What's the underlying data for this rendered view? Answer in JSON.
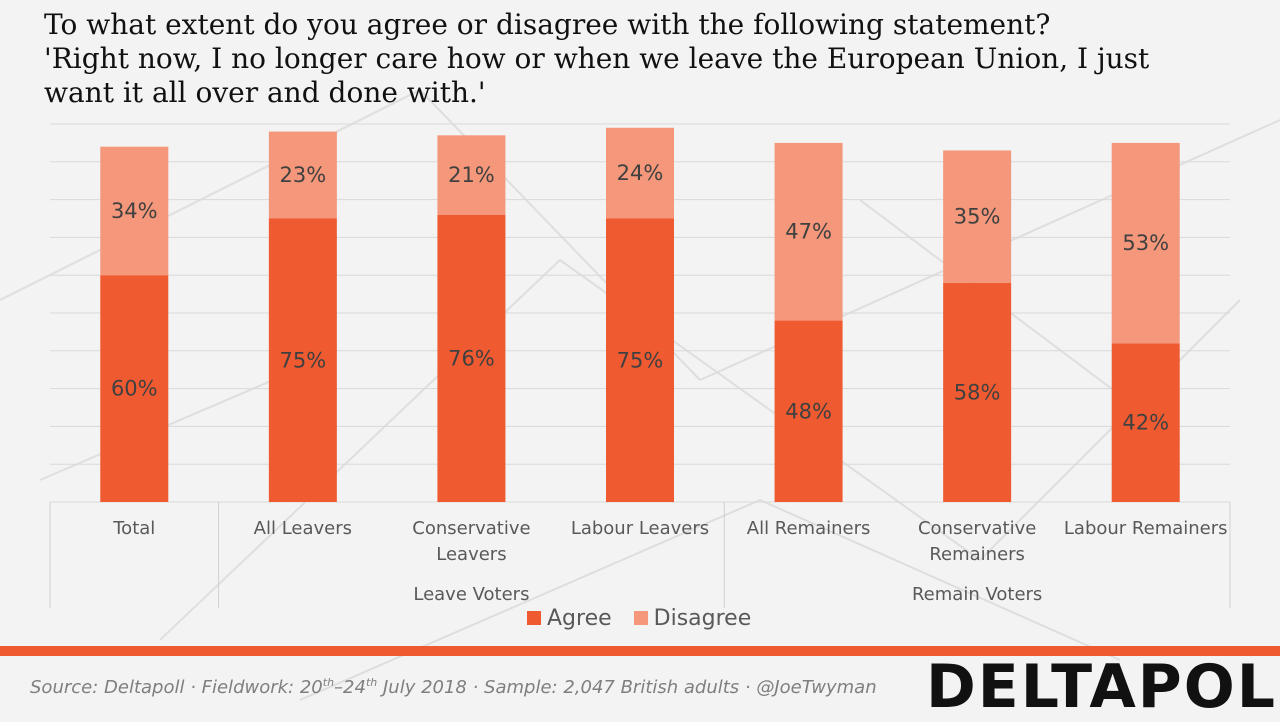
{
  "title": {
    "line1": "To what extent do you agree or disagree with the following statement?",
    "line2": "'Right now, I no longer care how or when we leave the European Union, I just",
    "line3": "want it all over and done with.'"
  },
  "chart_data": {
    "type": "bar",
    "stacked": true,
    "title": "To what extent do you agree or disagree with the following statement? 'Right now, I no longer care how or when we leave the European Union, I just want it all over and done with.'",
    "categories": [
      {
        "label": "Total",
        "lines": [
          "Total"
        ]
      },
      {
        "label": "All Leavers",
        "lines": [
          "All Leavers"
        ]
      },
      {
        "label": "Conservative Leavers",
        "lines": [
          "Conservative",
          "Leavers"
        ]
      },
      {
        "label": "Labour Leavers",
        "lines": [
          "Labour Leavers"
        ]
      },
      {
        "label": "All Remainers",
        "lines": [
          "All Remainers"
        ]
      },
      {
        "label": "Conservative Remainers",
        "lines": [
          "Conservative",
          "Remainers"
        ]
      },
      {
        "label": "Labour Remainers",
        "lines": [
          "Labour Remainers"
        ]
      }
    ],
    "groups": [
      {
        "label": "Leave Voters",
        "categories": [
          1,
          2,
          3
        ]
      },
      {
        "label": "Remain Voters",
        "categories": [
          4,
          5,
          6
        ]
      }
    ],
    "series": [
      {
        "name": "Agree",
        "color": "#f05a30",
        "values": [
          60,
          75,
          76,
          75,
          48,
          58,
          42
        ]
      },
      {
        "name": "Disagree",
        "color": "#f4977a",
        "values": [
          34,
          23,
          21,
          24,
          47,
          35,
          53
        ]
      }
    ],
    "value_suffix": "%",
    "ylim": [
      0,
      100
    ],
    "grid": true,
    "legend_position": "bottom"
  },
  "legend": {
    "agree_label": "Agree",
    "disagree_label": "Disagree"
  },
  "colors": {
    "agree": "#f05a30",
    "disagree": "#f4977a",
    "divider": "#f05a30",
    "background": "#f3f3f3"
  },
  "footer": {
    "source_prefix": "Source: Deltapoll · Fieldwork: 20",
    "sup1": "th",
    "source_mid": "–24",
    "sup2": "th",
    "source_suffix": " July 2018 · Sample: 2,047 British adults · @JoeTwyman",
    "logo_text": "DELTAPOLL"
  }
}
